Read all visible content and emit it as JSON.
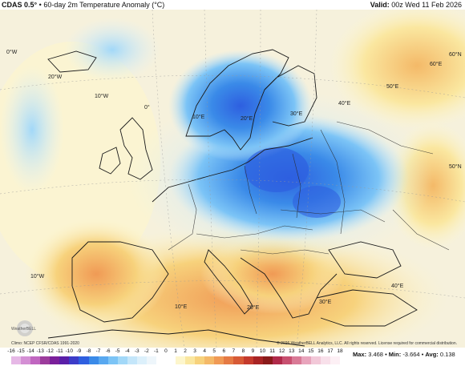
{
  "header": {
    "model": "CDAS 0.5°",
    "bullet": "•",
    "title": "60-day 2m Temperature Anomaly (°C)",
    "valid_label": "Valid:",
    "valid_time": "00z Wed 11 Feb 2026"
  },
  "map": {
    "graticule_labels": [
      "0°W",
      "20°W",
      "10°W",
      "0°",
      "10°E",
      "20°E",
      "30°E",
      "40°E",
      "50°E",
      "60°E",
      "60°N",
      "50°N",
      "10°W",
      "10°E",
      "20°E",
      "30°E",
      "40°E"
    ],
    "logo_text": "WeatherBELL"
  },
  "footer": {
    "climo": "Climo: NCEP CFSR/CDAS 1991-2020",
    "copyright": "© 2026 WeatherBELL Analytics, LLC. All rights reserved. License required for commercial distribution."
  },
  "colorbar": {
    "ticks": [
      "-16",
      "-15",
      "-14",
      "-13",
      "-12",
      "-11",
      "-10",
      "-9",
      "-8",
      "-7",
      "-6",
      "-5",
      "-4",
      "-3",
      "-2",
      "-1",
      "0",
      "1",
      "2",
      "3",
      "4",
      "5",
      "6",
      "7",
      "8",
      "9",
      "10",
      "11",
      "12",
      "13",
      "14",
      "15",
      "16",
      "17",
      "18"
    ],
    "colors": [
      "#e6b8e6",
      "#d48fd4",
      "#c066c0",
      "#9c3c9c",
      "#7a1f9a",
      "#5a1fa8",
      "#3c3cc8",
      "#2e5fe0",
      "#3a8ae8",
      "#58a8f0",
      "#7cc4f6",
      "#a2d8f8",
      "#c4e6fa",
      "#dcf0fb",
      "#eef6fb",
      "#ffffff",
      "#ffffff",
      "#fdf6cc",
      "#fae7a0",
      "#f7d27c",
      "#f4b968",
      "#f09a55",
      "#e57a44",
      "#d75a36",
      "#c43a2c",
      "#a82424",
      "#8a1a1a",
      "#b02a4a",
      "#c85070",
      "#d97a96",
      "#e8a4bc",
      "#f2c8d8",
      "#f8e0ea",
      "#fdf0f5"
    ]
  },
  "stats": {
    "max_label": "Max:",
    "max_value": "3.468",
    "min_label": "Min:",
    "min_value": "-3.664",
    "avg_label": "Avg:",
    "avg_value": "0.138",
    "sep": "•"
  }
}
